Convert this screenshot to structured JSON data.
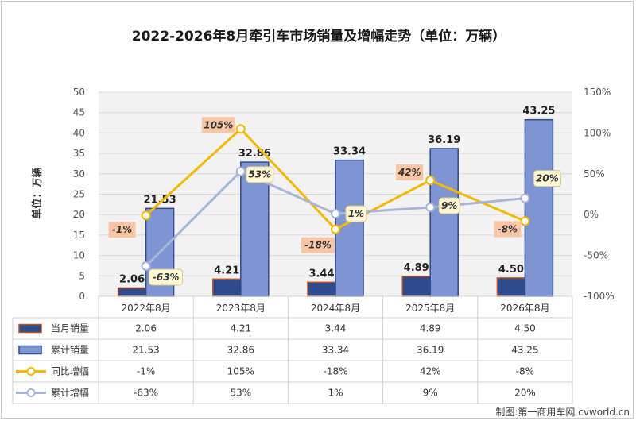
{
  "chart_data": {
    "type": "bar",
    "title": "2022-2026年8月牵引车市场销量及增幅走势（单位：万辆）",
    "ylabel": "单位：万辆",
    "ylim": [
      0,
      50
    ],
    "y_ticks": [
      "0",
      "5",
      "10",
      "15",
      "20",
      "25",
      "30",
      "35",
      "40",
      "45",
      "50"
    ],
    "y2lim": [
      -100,
      150
    ],
    "y2_ticks": [
      "-100%",
      "-50%",
      "0%",
      "50%",
      "100%",
      "150%"
    ],
    "categories": [
      "2022年8月",
      "2023年8月",
      "2024年8月",
      "2025年8月",
      "2026年8月"
    ],
    "series": [
      {
        "name": "当月销量",
        "kind": "bar",
        "axis": "left",
        "color": "#2e4b8c",
        "edge": "#c0501f",
        "values": [
          2.06,
          4.21,
          3.44,
          4.89,
          4.5
        ],
        "labels": [
          "2.06",
          "4.21",
          "3.44",
          "4.89",
          "4.50"
        ]
      },
      {
        "name": "累计销量",
        "kind": "bar",
        "axis": "left",
        "color": "#7f95d3",
        "edge": "#2e4b8c",
        "values": [
          21.53,
          32.86,
          33.34,
          36.19,
          43.25
        ],
        "labels": [
          "21.53",
          "32.86",
          "33.34",
          "36.19",
          "43.25"
        ]
      },
      {
        "name": "同比增幅",
        "kind": "line",
        "axis": "right",
        "color": "#f5b800",
        "label_bg": "#f8c6a4",
        "values": [
          -1,
          105,
          -18,
          42,
          -8
        ],
        "labels": [
          "-1%",
          "105%",
          "-18%",
          "42%",
          "-8%"
        ]
      },
      {
        "name": "累计增幅",
        "kind": "line",
        "axis": "right",
        "color": "#a9b4d9",
        "label_bg": "#fff6d5",
        "values": [
          -63,
          53,
          1,
          9,
          20
        ],
        "labels": [
          "-63%",
          "53%",
          "1%",
          "9%",
          "20%"
        ]
      }
    ],
    "grid": true,
    "legend": "data-table"
  },
  "source": "制图:第一商用车网 cvworld.cn"
}
